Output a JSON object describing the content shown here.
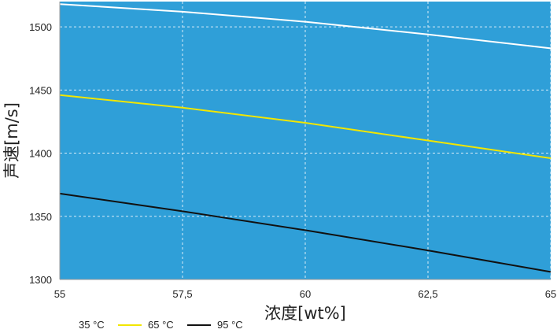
{
  "chart_data": {
    "type": "line",
    "xlabel": "浓度[wt%]",
    "ylabel": "声速[m/s]",
    "xlim": [
      55,
      65
    ],
    "ylim": [
      1300,
      1520
    ],
    "xticks": [
      55,
      57.5,
      60,
      62.5,
      65
    ],
    "xtick_labels": [
      "55",
      "57,5",
      "60",
      "62,5",
      "65"
    ],
    "yticks": [
      1300,
      1350,
      1400,
      1450,
      1500
    ],
    "ytick_labels": [
      "1300",
      "1350",
      "1400",
      "1450",
      "1500"
    ],
    "grid": true,
    "legend_position": "bottom-left",
    "colors": {
      "plot_background": "#2f9fd8",
      "grid": "#d9ecf8"
    },
    "series": [
      {
        "name": "35 °C",
        "color": "#ffffff",
        "x": [
          55,
          57.5,
          60,
          62.5,
          65
        ],
        "y": [
          1518,
          1512,
          1504,
          1494,
          1483
        ]
      },
      {
        "name": "65 °C",
        "color": "#f2e600",
        "x": [
          55,
          57.5,
          60,
          62.5,
          65
        ],
        "y": [
          1446,
          1436,
          1424,
          1410,
          1396
        ]
      },
      {
        "name": "95 °C",
        "color": "#111111",
        "x": [
          55,
          57.5,
          60,
          62.5,
          65
        ],
        "y": [
          1368,
          1354,
          1339,
          1323,
          1306
        ]
      }
    ]
  }
}
